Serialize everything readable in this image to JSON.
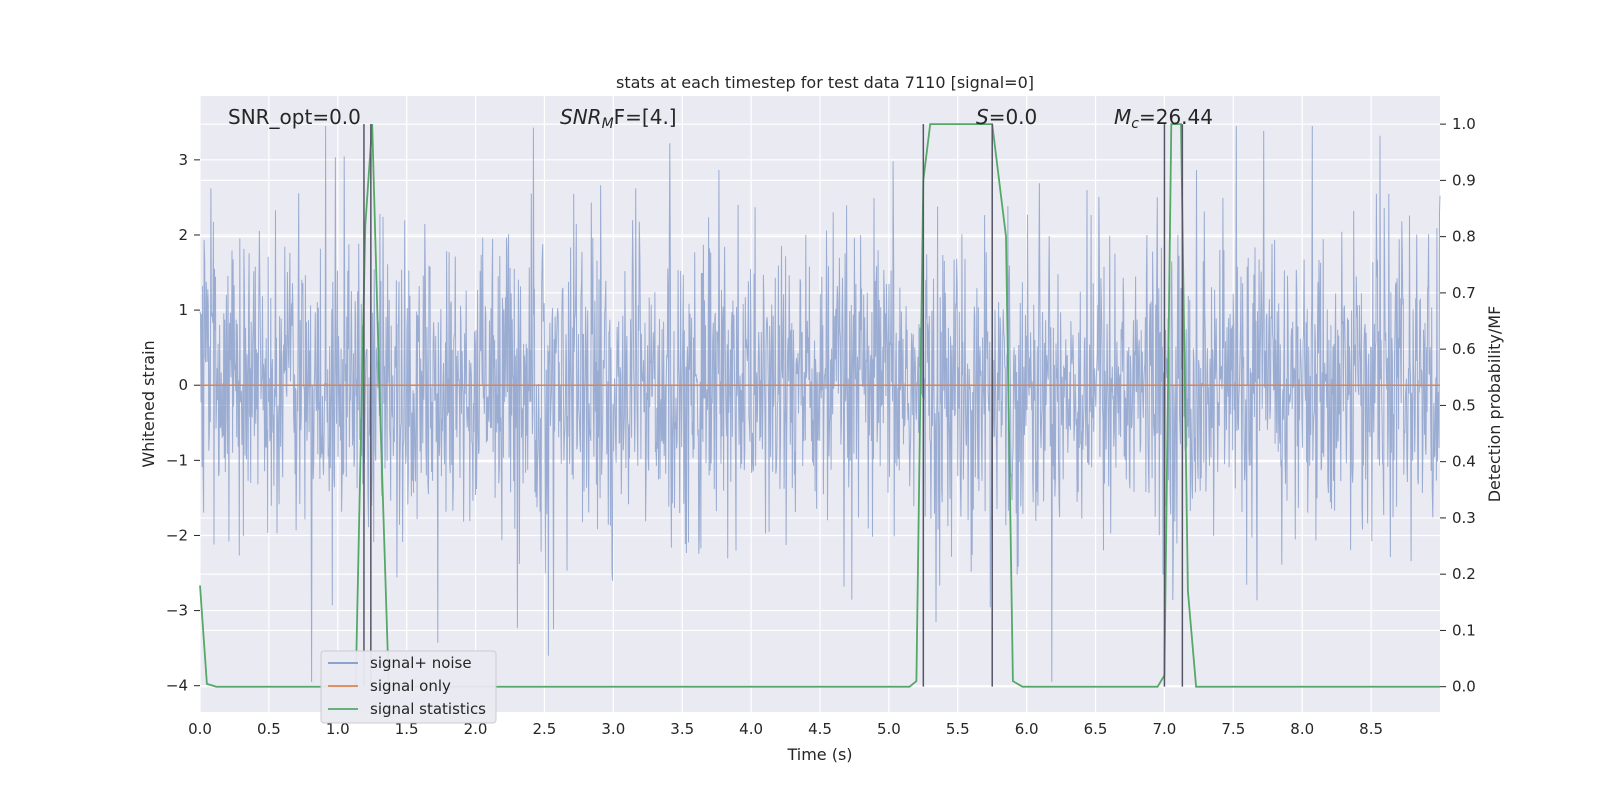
{
  "chart_data": {
    "type": "line",
    "title": "stats at each timestep for test data 7110 [signal=0]",
    "xlabel": "Time (s)",
    "ylabel": "Whitened strain",
    "y2label": "Detection probability/MF",
    "xlim": [
      0.0,
      9.0
    ],
    "ylim": [
      -4.35,
      3.85
    ],
    "y2lim": [
      -0.045,
      1.05
    ],
    "xticks": [
      "0.0",
      "0.5",
      "1.0",
      "1.5",
      "2.0",
      "2.5",
      "3.0",
      "3.5",
      "4.0",
      "4.5",
      "5.0",
      "5.5",
      "6.0",
      "6.5",
      "7.0",
      "7.5",
      "8.0",
      "8.5"
    ],
    "yticks": [
      "3",
      "2",
      "1",
      "0",
      "−1",
      "−2",
      "−3",
      "−4"
    ],
    "y2ticks": [
      "1.0",
      "0.9",
      "0.8",
      "0.7",
      "0.6",
      "0.5",
      "0.4",
      "0.3",
      "0.2",
      "0.1",
      "0.0"
    ],
    "grid": true,
    "legend_position": "lower-left",
    "annotations": {
      "snr_opt": "SNR_opt=0.0",
      "snr_mf_main": "SNR",
      "snr_mf_sub": "M",
      "snr_mf_rest": "F=[4.]",
      "s_main": "S",
      "s_rest": "=0.0",
      "mc_main": "M",
      "mc_sub": "c",
      "mc_rest": "=26.44"
    },
    "series": [
      {
        "name": "signal+ noise",
        "color": "#7f97c7",
        "note_kind": "noise",
        "envelope_typical": [
          -1.7,
          2.1
        ],
        "peaks": [
          3.2,
          -3.6,
          3.3,
          -3.8,
          3.1,
          -4.0,
          3.0,
          -3.5,
          2.9
        ]
      },
      {
        "name": "signal only",
        "color": "#dd8452",
        "x": [
          0.0,
          9.0
        ],
        "y": [
          0.0,
          0.0
        ]
      },
      {
        "name": "signal statistics",
        "color": "#55a868",
        "axis": "right",
        "x": [
          0.0,
          0.05,
          0.12,
          1.13,
          1.2,
          1.25,
          1.3,
          1.37,
          5.15,
          5.2,
          5.25,
          5.3,
          5.7,
          5.75,
          5.85,
          5.9,
          5.97,
          6.95,
          7.0,
          7.05,
          7.12,
          7.17,
          7.23,
          9.0
        ],
        "y": [
          0.18,
          0.005,
          0.0,
          0.0,
          0.82,
          1.0,
          0.55,
          0.0,
          0.0,
          0.01,
          0.9,
          1.0,
          1.0,
          1.0,
          0.8,
          0.01,
          0.0,
          0.0,
          0.02,
          1.0,
          1.0,
          0.17,
          0.0,
          0.0
        ]
      }
    ],
    "vlines": [
      1.19,
      1.24,
      5.25,
      5.75,
      7.0,
      7.13
    ]
  }
}
